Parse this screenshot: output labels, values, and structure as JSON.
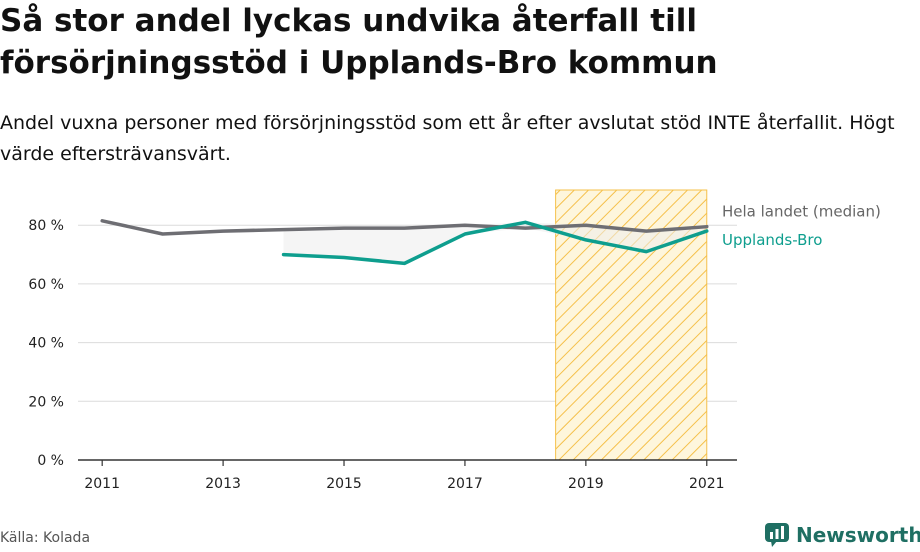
{
  "title": "Så stor andel lyckas undvika återfall till försörjningsstöd i Upplands-Bro kommun",
  "subtitle": "Andel vuxna personer med försörjningsstöd som ett år efter avslutat stöd INTE återfallit. Högt värde eftersträvansvärt.",
  "source": "Källa: Kolada",
  "brand": "Newsworthy",
  "colors": {
    "national": "#6e6e73",
    "municipality": "#0e9e8e",
    "highlight_fill": "#fbe7a8",
    "highlight_stroke": "#f5c04a",
    "gap_fill": "#ececec",
    "brand": "#1f6f63"
  },
  "chart_data": {
    "type": "line",
    "x": [
      2011,
      2012,
      2013,
      2014,
      2015,
      2016,
      2017,
      2018,
      2019,
      2020,
      2021
    ],
    "series": [
      {
        "name": "Hela landet (median)",
        "values": [
          81.5,
          77,
          78,
          78.5,
          79,
          79,
          80,
          79,
          80,
          78,
          79.5
        ]
      },
      {
        "name": "Upplands-Bro",
        "values": [
          null,
          null,
          null,
          70,
          69,
          67,
          77,
          81,
          75,
          71,
          78
        ]
      }
    ],
    "highlight_range": [
      2018.5,
      2021
    ],
    "xticks": [
      "2011",
      "2013",
      "2015",
      "2017",
      "2019",
      "2021"
    ],
    "yticks": [
      "0 %",
      "20 %",
      "40 %",
      "60 %",
      "80 %"
    ],
    "ylim": [
      0,
      92
    ],
    "xlim": [
      2010.6,
      2021.5
    ],
    "grid": true,
    "legend": "right-end labels"
  }
}
